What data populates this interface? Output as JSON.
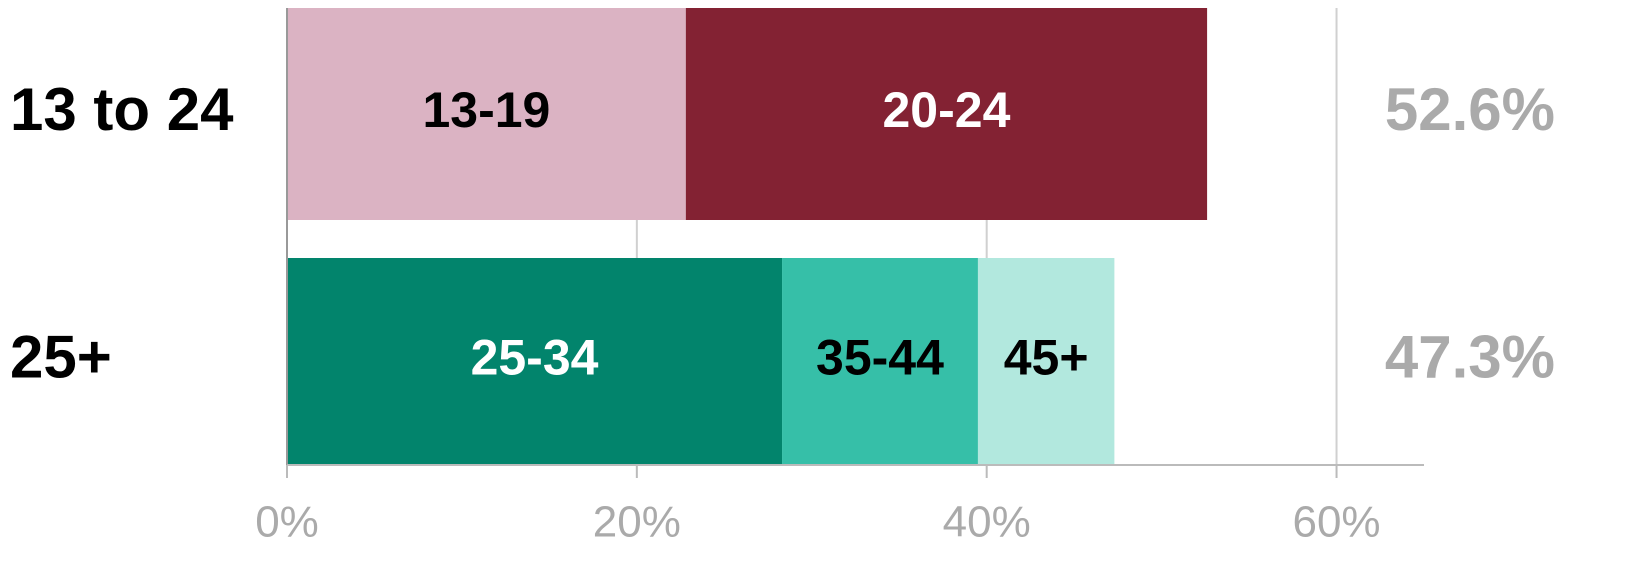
{
  "chart_data": {
    "type": "stacked-bar-horizontal",
    "categories": [
      "13 to 24",
      "25+"
    ],
    "series": [
      {
        "name": "13-19",
        "color": "#dbb3c3",
        "label_color": "#000000",
        "values": [
          22.8,
          null
        ]
      },
      {
        "name": "20-24",
        "color": "#832233",
        "label_color": "#ffffff",
        "values": [
          29.8,
          null
        ]
      },
      {
        "name": "25-34",
        "color": "#02846c",
        "label_color": "#ffffff",
        "values": [
          null,
          28.3
        ]
      },
      {
        "name": "35-44",
        "color": "#36bfa8",
        "label_color": "#000000",
        "values": [
          null,
          11.2
        ]
      },
      {
        "name": "45+",
        "color": "#b2e8de",
        "label_color": "#000000",
        "values": [
          null,
          7.8
        ]
      }
    ],
    "totals": [
      52.6,
      47.3
    ],
    "total_labels": [
      "52.6%",
      "47.3%"
    ],
    "xlim": [
      0,
      65
    ],
    "xticks": [
      {
        "value": 0,
        "label": "0%"
      },
      {
        "value": 20,
        "label": "20%"
      },
      {
        "value": 40,
        "label": "40%"
      },
      {
        "value": 60,
        "label": "60%"
      }
    ],
    "grid": true
  }
}
